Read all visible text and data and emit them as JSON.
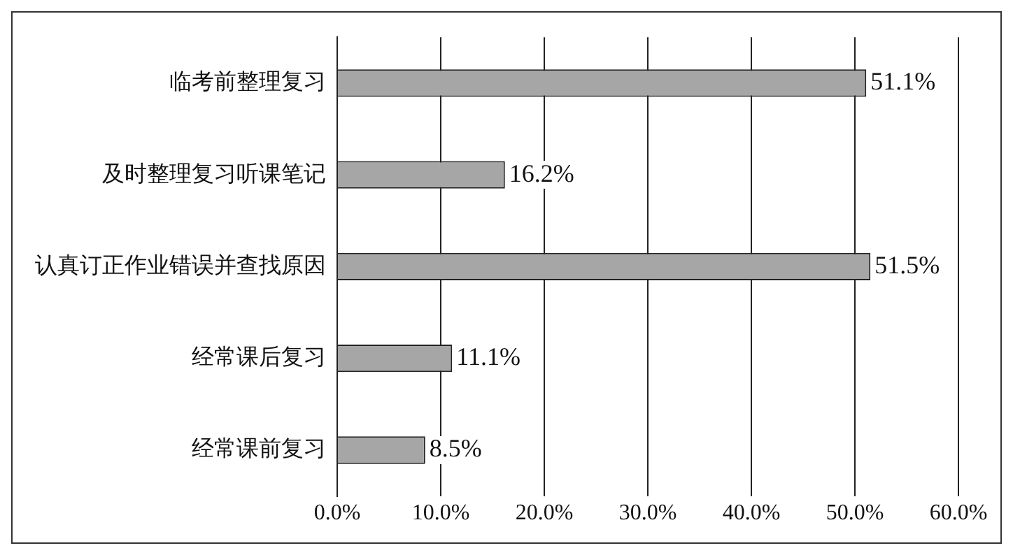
{
  "chart_data": {
    "type": "bar",
    "orientation": "horizontal",
    "categories": [
      "临考前整理复习",
      "及时整理复习听课笔记",
      "认真订正作业错误并查找原因",
      "经常课后复习",
      "经常课前复习"
    ],
    "values": [
      51.1,
      16.2,
      51.5,
      11.1,
      8.5
    ],
    "value_labels": [
      "51.1%",
      "16.2%",
      "51.5%",
      "11.1%",
      "8.5%"
    ],
    "color": "#a6a6a6",
    "xlim": [
      0,
      60
    ],
    "xticks": [
      {
        "value": 0,
        "label": "0.0%"
      },
      {
        "value": 10,
        "label": "10.0%"
      },
      {
        "value": 20,
        "label": "20.0%"
      },
      {
        "value": 30,
        "label": "30.0%"
      },
      {
        "value": 40,
        "label": "40.0%"
      },
      {
        "value": 50,
        "label": "50.0%"
      },
      {
        "value": 60,
        "label": "60.0%"
      }
    ],
    "grid": "x",
    "legend": false
  }
}
